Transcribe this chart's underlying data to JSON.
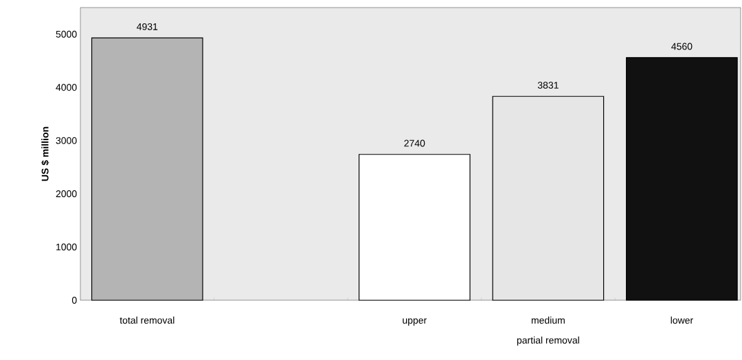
{
  "chart_data": {
    "type": "bar",
    "ylabel": "US $ million",
    "categories": [
      "total removal",
      null,
      "upper",
      "medium",
      "lower"
    ],
    "values": [
      4931,
      null,
      2740,
      3831,
      4560
    ],
    "colors": [
      "#b4b4b4",
      "#ffffff",
      "#ffffff",
      "#e6e6e6",
      "#111111"
    ],
    "ylim": [
      0,
      5500
    ],
    "yticks": [
      0,
      1000,
      2000,
      3000,
      4000,
      5000
    ],
    "data_labels": true,
    "annotations": [
      "partial removal"
    ]
  }
}
